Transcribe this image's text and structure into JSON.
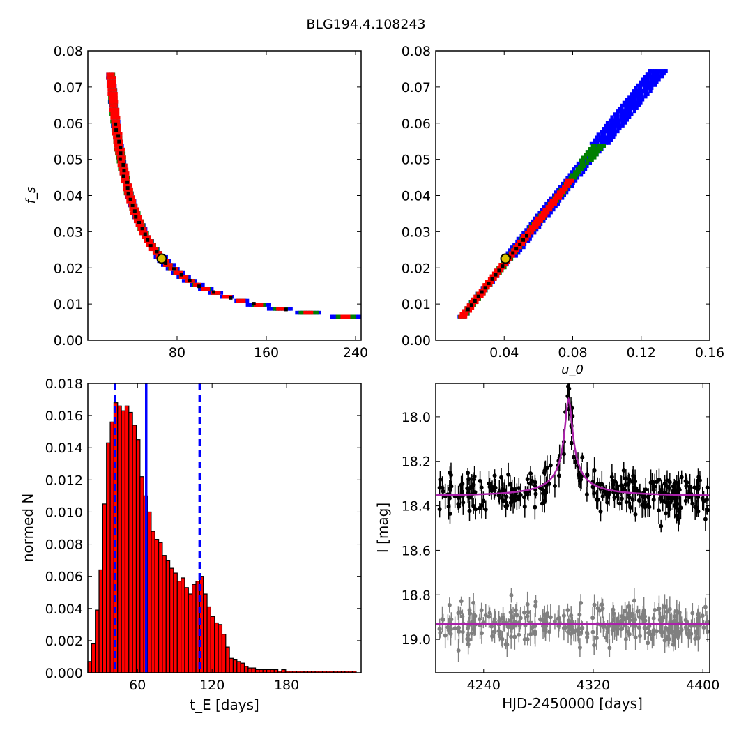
{
  "figure": {
    "title": "BLG194.4.108243"
  },
  "colors": {
    "sigma3": "#0000ff",
    "sigma2": "#008000",
    "sigma1": "#ff0000",
    "best": "#000000",
    "bar": "#ff0000",
    "median": "#0000ff",
    "model": "#aa22aa",
    "data": "#000000",
    "resid": "#808080",
    "marker_fill": "#d8c000"
  },
  "chart_data": [
    {
      "type": "heatmap",
      "id": "tE_fs",
      "xlim": [
        0,
        245
      ],
      "ylim": [
        0,
        0.08
      ],
      "xticks": [
        80,
        160,
        240
      ],
      "yticks": [
        0.0,
        0.01,
        0.02,
        0.03,
        0.04,
        0.05,
        0.06,
        0.07,
        0.08
      ],
      "xlabel": "",
      "ylabel": "f_s",
      "best": {
        "tE": 67,
        "fs": 0.0225
      },
      "confidence_regions": [
        "3-sigma (blue)",
        "2-sigma (green)",
        "1-sigma (red)",
        "best (black)"
      ]
    },
    {
      "type": "heatmap",
      "id": "u0_fs",
      "xlim": [
        0,
        0.16
      ],
      "ylim": [
        0,
        0.08
      ],
      "xticks": [
        0.04,
        0.08,
        0.12,
        0.16
      ],
      "yticks": [
        0.0,
        0.01,
        0.02,
        0.03,
        0.04,
        0.05,
        0.06,
        0.07,
        0.08
      ],
      "xlabel": "u_0",
      "ylabel": "",
      "best": {
        "u0": 0.041,
        "fs": 0.0225
      }
    },
    {
      "type": "bar",
      "id": "tE_hist",
      "xlim": [
        20,
        240
      ],
      "ylim": [
        0,
        0.018
      ],
      "xticks": [
        60,
        120,
        180
      ],
      "yticks": [
        0.0,
        0.002,
        0.004,
        0.006,
        0.008,
        0.01,
        0.012,
        0.014,
        0.016,
        0.018
      ],
      "xlabel": "t_E  [days]",
      "ylabel": "normed N",
      "bin_start": 20,
      "bin_width": 3,
      "values": [
        0.0007,
        0.0018,
        0.0039,
        0.0064,
        0.0105,
        0.0143,
        0.0156,
        0.0168,
        0.0166,
        0.0163,
        0.0166,
        0.0162,
        0.0154,
        0.0145,
        0.0122,
        0.011,
        0.01,
        0.0088,
        0.0083,
        0.0081,
        0.0073,
        0.007,
        0.0065,
        0.0062,
        0.0057,
        0.0059,
        0.0053,
        0.0049,
        0.0055,
        0.0057,
        0.006,
        0.0049,
        0.0041,
        0.0035,
        0.0031,
        0.003,
        0.0024,
        0.0016,
        0.0009,
        0.0008,
        0.0007,
        0.0006,
        0.0004,
        0.0003,
        0.0003,
        0.0002,
        0.0002,
        0.0002,
        0.0002,
        0.0002,
        0.0002,
        0.0001,
        0.0002,
        0.0001,
        0.0001,
        0.0001,
        0.0001,
        0.0001,
        0.0001,
        0.0001,
        0.0001,
        0.0001,
        0.0001,
        0.0001,
        0.0001,
        0.0001,
        0.0001,
        0.0001,
        0.0001,
        0.0001,
        0.0001,
        0.0001
      ],
      "median": 67,
      "lower_quantile": 42,
      "upper_quantile": 110
    },
    {
      "type": "scatter",
      "id": "lightcurve",
      "xlim": [
        4205,
        4405
      ],
      "ylim": [
        19.15,
        17.85
      ],
      "xticks": [
        4240,
        4320,
        4400
      ],
      "yticks": [
        18.0,
        18.2,
        18.4,
        18.6,
        18.8,
        19.0
      ],
      "xlabel": "HJD-2450000 [days]",
      "ylabel": "I [mag]",
      "model": {
        "t0": 4302,
        "baseline": 18.355,
        "peak": 17.92,
        "u0": 0.041,
        "tE": 67
      },
      "residual_offset": 18.93,
      "n_points": 300,
      "scatter_sigma": 0.045
    }
  ]
}
